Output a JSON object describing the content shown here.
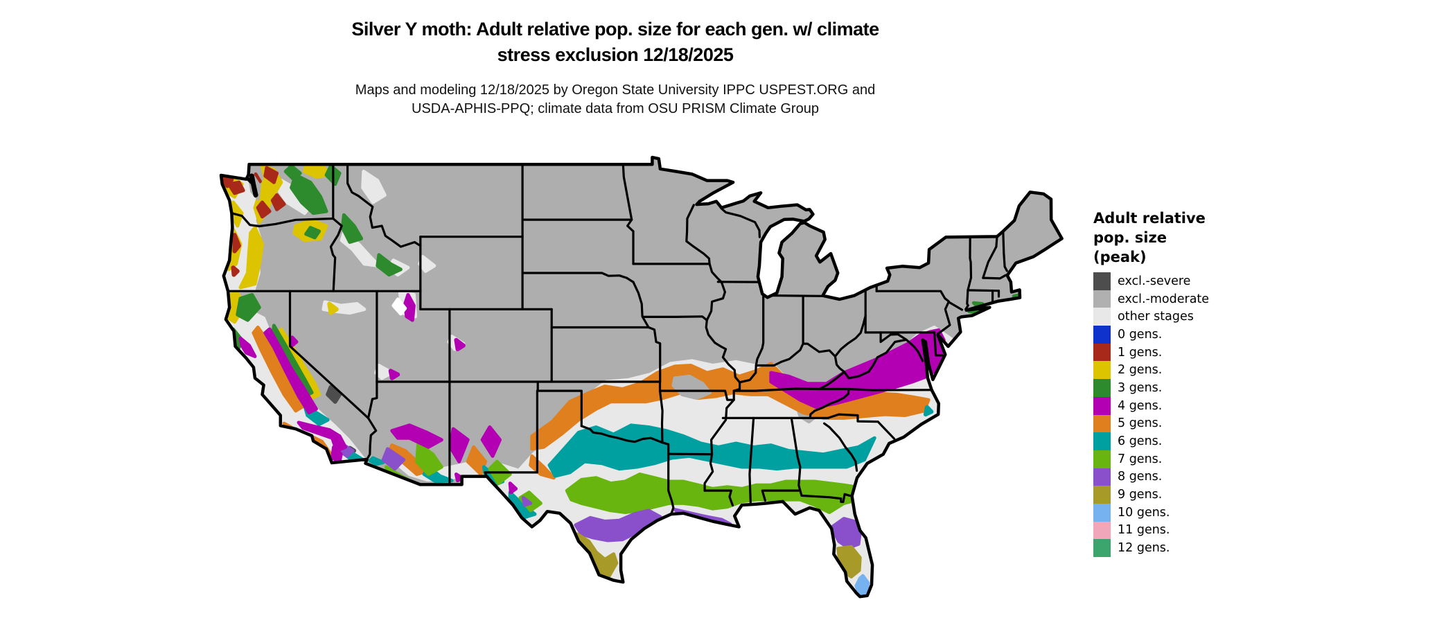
{
  "title": {
    "line1": "Silver Y moth: Adult relative pop. size for each gen. w/ climate",
    "line2": "stress exclusion 12/18/2025"
  },
  "subtitle": {
    "line1": "Maps and modeling 12/18/2025 by Oregon State University IPPC USPEST.ORG and",
    "line2": "USDA-APHIS-PPQ; climate data from OSU PRISM Climate Group"
  },
  "legend": {
    "title_lines": [
      "Adult relative",
      "pop. size",
      "(peak)"
    ],
    "items": [
      {
        "id": "sev",
        "label": "excl.-severe",
        "color": "#4d4d4d"
      },
      {
        "id": "mod",
        "label": "excl.-moderate",
        "color": "#b0b0b0"
      },
      {
        "id": "oth",
        "label": "other stages",
        "color": "#e8e8e8"
      },
      {
        "id": "g0",
        "label": "0 gens.",
        "color": "#0f32cd"
      },
      {
        "id": "g1",
        "label": "1 gens.",
        "color": "#a8281a"
      },
      {
        "id": "g2",
        "label": "2 gens.",
        "color": "#ddc400"
      },
      {
        "id": "g3",
        "label": "3 gens.",
        "color": "#2d8b2d"
      },
      {
        "id": "g4",
        "label": "4 gens.",
        "color": "#b300b3"
      },
      {
        "id": "g5",
        "label": "5 gens.",
        "color": "#e07f1e"
      },
      {
        "id": "g6",
        "label": "6 gens.",
        "color": "#00a0a0"
      },
      {
        "id": "g7",
        "label": "7 gens.",
        "color": "#68b50f"
      },
      {
        "id": "g8",
        "label": "8 gens.",
        "color": "#8a50cc"
      },
      {
        "id": "g9",
        "label": "9 gens.",
        "color": "#a89a28"
      },
      {
        "id": "g10",
        "label": "10 gens.",
        "color": "#77b2f0"
      },
      {
        "id": "g11",
        "label": "11 gens.",
        "color": "#f2a6ba"
      },
      {
        "id": "g12",
        "label": "12 gens.",
        "color": "#3ca56e"
      }
    ]
  },
  "map": {
    "land_color": "#aeaeae",
    "border_color": "#000000",
    "water_color": "#ffffff"
  }
}
